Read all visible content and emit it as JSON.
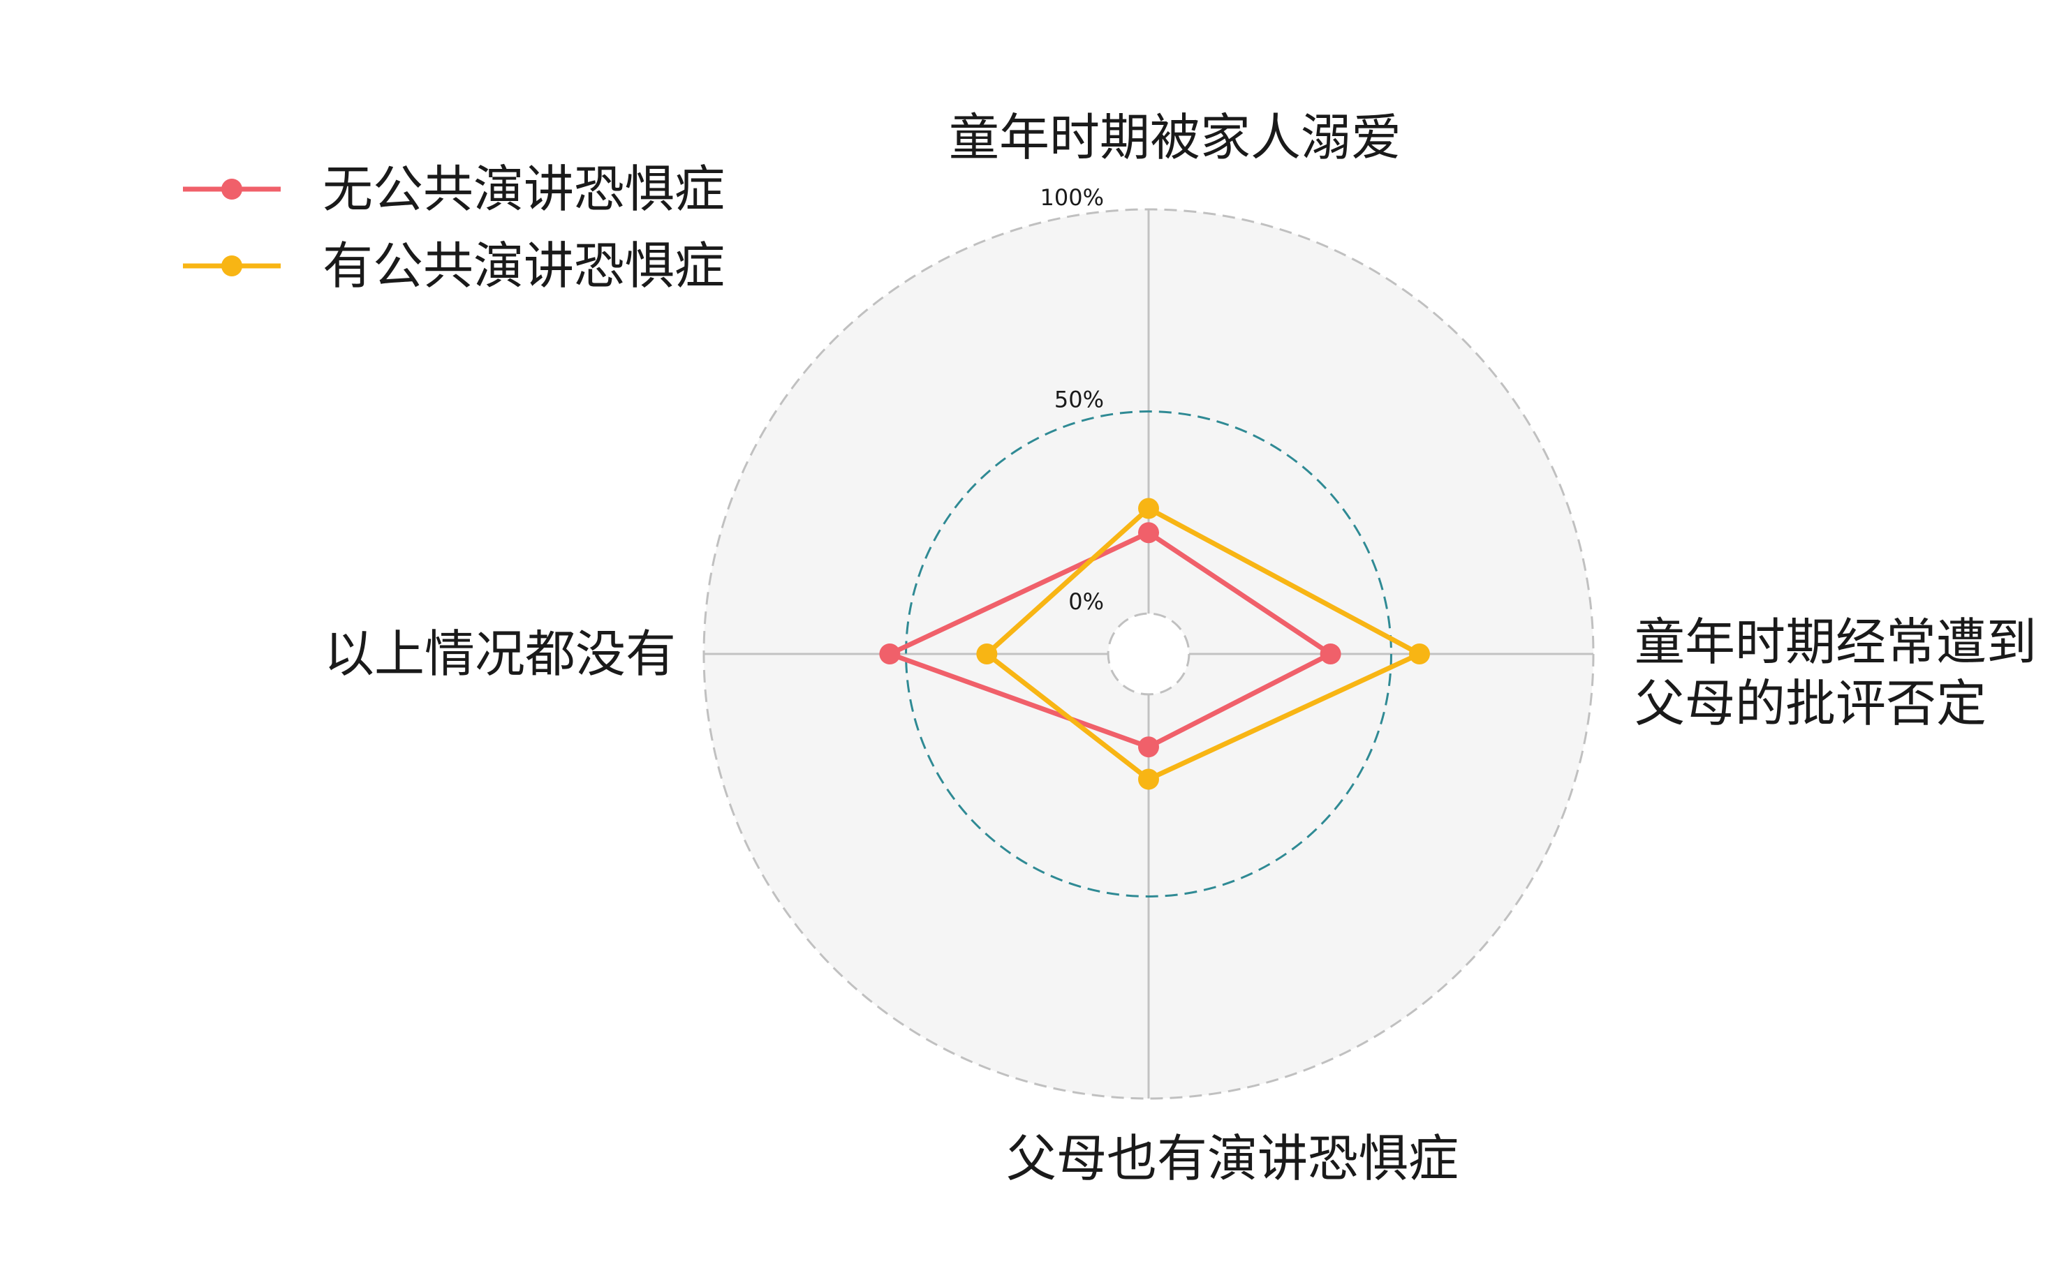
{
  "chart_data": {
    "type": "radar",
    "axes": [
      {
        "label_lines": [
          "童年时期被家人溺爱"
        ]
      },
      {
        "label_lines": [
          "童年时期经常遭到",
          "父母的批评否定"
        ]
      },
      {
        "label_lines": [
          "父母也有演讲恐惧症"
        ]
      },
      {
        "label_lines": [
          "以上情况都没有"
        ]
      }
    ],
    "rlim": [
      -10,
      100
    ],
    "r_ticks": [
      {
        "value": 0,
        "label": "0%"
      },
      {
        "value": 50,
        "label": "50%"
      },
      {
        "value": 100,
        "label": "100%"
      }
    ],
    "grid": true,
    "legend_position": "top-left",
    "series": [
      {
        "name": "无公共演讲恐惧症",
        "color": "#f0606a",
        "values": [
          20,
          35,
          13,
          54
        ]
      },
      {
        "name": "有公共演讲恐惧症",
        "color": "#f8b514",
        "values": [
          26,
          57,
          21,
          30
        ]
      }
    ]
  }
}
